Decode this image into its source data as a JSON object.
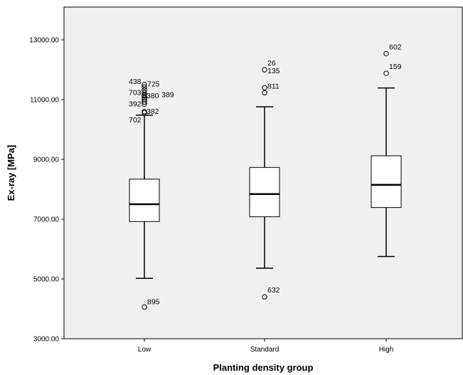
{
  "chart_data": {
    "type": "boxplot",
    "title": "",
    "xlabel": "Planting density group",
    "ylabel": "Ex-ray [MPa]",
    "ylim": [
      3000,
      14000
    ],
    "yticks": [
      3000,
      5000,
      7000,
      9000,
      11000,
      13000
    ],
    "ytick_labels": [
      "3000.00",
      "5000.00",
      "7000.00",
      "9000.00",
      "11000.00",
      "13000.00"
    ],
    "grid": false,
    "plot_background": "#f0f0f0",
    "box_fill": "#ffffff",
    "categories": [
      "Low",
      "Standard",
      "High"
    ],
    "boxes": [
      {
        "category": "Low",
        "whisker_low": 5020,
        "q1": 6920,
        "median": 7500,
        "q3": 8340,
        "whisker_high": 10480,
        "outliers": [
          {
            "value": 4060,
            "label": "895"
          },
          {
            "value": 10560,
            "label": ""
          },
          {
            "value": 10600,
            "label": "382"
          },
          {
            "value": 10850,
            "label": "392"
          },
          {
            "value": 10920,
            "label": ""
          },
          {
            "value": 11000,
            "label": ""
          },
          {
            "value": 11060,
            "label": ""
          },
          {
            "value": 11120,
            "label": "380"
          },
          {
            "value": 11160,
            "label": "389"
          },
          {
            "value": 11230,
            "label": "703"
          },
          {
            "value": 11320,
            "label": ""
          },
          {
            "value": 11420,
            "label": "725"
          },
          {
            "value": 11500,
            "label": "438"
          }
        ],
        "extra_labels": [
          {
            "value": 10600,
            "label": "702"
          }
        ]
      },
      {
        "category": "Standard",
        "whisker_low": 5360,
        "q1": 7080,
        "median": 7840,
        "q3": 8730,
        "whisker_high": 10760,
        "outliers": [
          {
            "value": 4400,
            "label": "632"
          },
          {
            "value": 11230,
            "label": "811"
          },
          {
            "value": 11400,
            "label": "135"
          },
          {
            "value": 12000,
            "label": "26"
          }
        ],
        "extra_labels": []
      },
      {
        "category": "High",
        "whisker_low": 5750,
        "q1": 7390,
        "median": 8150,
        "q3": 9120,
        "whisker_high": 11390,
        "outliers": [
          {
            "value": 11880,
            "label": "159"
          },
          {
            "value": 12540,
            "label": "602"
          }
        ],
        "extra_labels": []
      }
    ]
  }
}
